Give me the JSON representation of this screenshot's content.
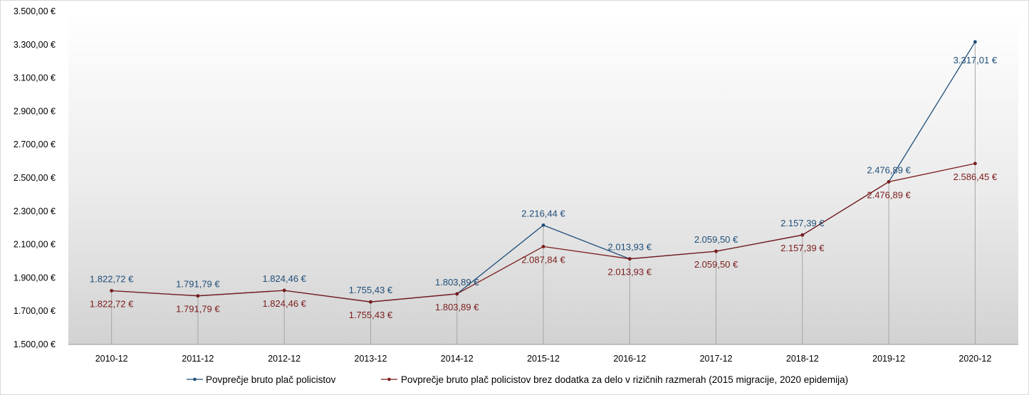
{
  "chart_data": {
    "type": "line",
    "categories": [
      "2010-12",
      "2011-12",
      "2012-12",
      "2013-12",
      "2014-12",
      "2015-12",
      "2016-12",
      "2017-12",
      "2018-12",
      "2019-12",
      "2020-12"
    ],
    "ylim": [
      1500,
      3500
    ],
    "y_ticks": [
      1500,
      1700,
      1900,
      2100,
      2300,
      2500,
      2700,
      2900,
      3100,
      3300,
      3500
    ],
    "y_tick_labels": [
      "1.500,00  €",
      "1.700,00  €",
      "1.900,00  €",
      "2.100,00  €",
      "2.300,00  €",
      "2.500,00  €",
      "2.700,00  €",
      "2.900,00  €",
      "3.100,00  €",
      "3.300,00  €",
      "3.500,00  €"
    ],
    "grid": false,
    "drop_lines": true,
    "legend_position": "bottom",
    "series": [
      {
        "name": "Povprečje bruto plač policistov",
        "color": "#1f4e79",
        "values": [
          1822.72,
          1791.79,
          1824.46,
          1755.43,
          1803.89,
          2216.44,
          2013.93,
          2059.5,
          2157.39,
          2476.89,
          3317.01
        ],
        "labels": [
          "1.822,72  €",
          "1.791,79  €",
          "1.824,46  €",
          "1.755,43  €",
          "1.803,89  €",
          "2.216,44  €",
          "2.013,93  €",
          "2.059,50  €",
          "2.157,39  €",
          "2.476,89  €",
          "3.317,01  €"
        ]
      },
      {
        "name": "Povprečje bruto plač policistov brez dodatka za delo v rizičnih razmerah (2015 migracije, 2020 epidemija)",
        "color": "#7b1c1c",
        "values": [
          1822.72,
          1791.79,
          1824.46,
          1755.43,
          1803.89,
          2087.84,
          2013.93,
          2059.5,
          2157.39,
          2476.89,
          2586.45
        ],
        "labels": [
          "1.822,72  €",
          "1.791,79  €",
          "1.824,46  €",
          "1.755,43  €",
          "1.803,89  €",
          "2.087,84  €",
          "2.013,93  €",
          "2.059,50  €",
          "2.157,39  €",
          "2.476,89  €",
          "2.586,45  €"
        ]
      }
    ]
  }
}
